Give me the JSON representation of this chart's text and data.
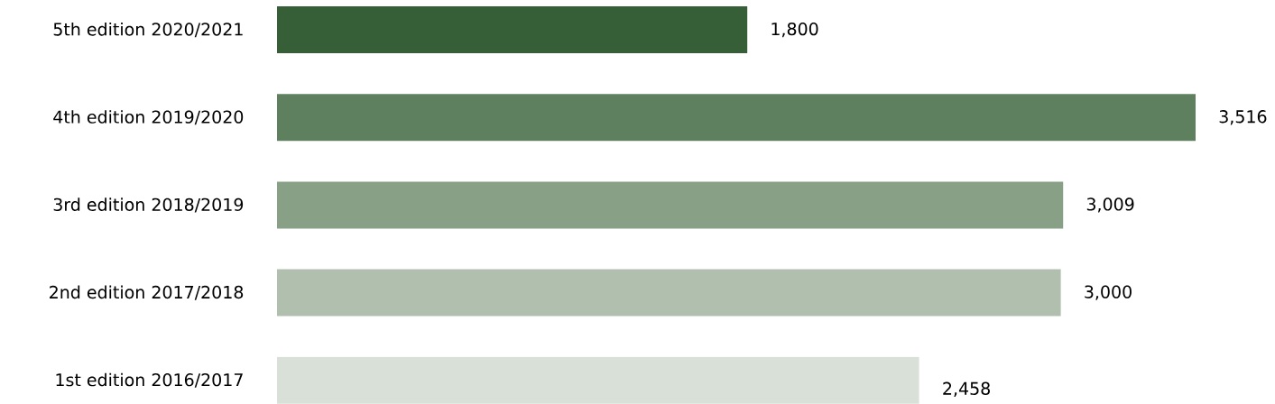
{
  "chart_data": {
    "type": "bar",
    "orientation": "horizontal",
    "categories": [
      "5th edition 2020/2021",
      "4th edition 2019/2020",
      "3rd edition 2018/2019",
      "2nd edition 2017/2018",
      "1st edition 2016/2017"
    ],
    "values": [
      1800,
      3516,
      3009,
      3000,
      2458
    ],
    "value_labels": [
      "1,800",
      "3,516",
      "3,009",
      "3,000",
      "2,458"
    ],
    "colors": [
      "#375f37",
      "#5f805f",
      "#88a086",
      "#b0bfae",
      "#d9e0d8"
    ]
  }
}
